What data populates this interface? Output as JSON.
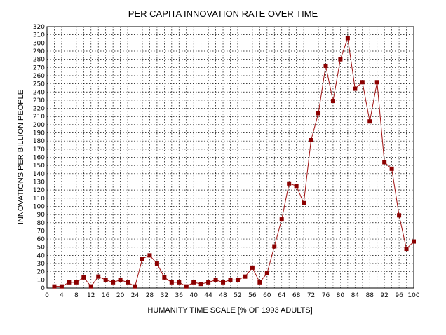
{
  "chart_data": {
    "type": "line",
    "title": "PER CAPITA INNOVATION RATE OVER TIME",
    "xlabel": "HUMANITY TIME SCALE [% OF 1993 ADULTS]",
    "ylabel": "INNOVATIONS PER BILLION PEOPLE",
    "xlim": [
      0,
      100
    ],
    "ylim": [
      0,
      320
    ],
    "xticks": [
      0,
      4,
      8,
      12,
      16,
      20,
      24,
      28,
      32,
      36,
      40,
      44,
      48,
      52,
      56,
      60,
      64,
      68,
      72,
      76,
      80,
      84,
      88,
      92,
      96,
      100
    ],
    "xgrid_step": 2,
    "ytick_step": 10,
    "grid": true,
    "marker": "square",
    "colors": {
      "line": "#a01010",
      "marker": "#8b0000",
      "grid": "#000000"
    },
    "series": [
      {
        "x": [
          2,
          4,
          6,
          8,
          10,
          12,
          14,
          16,
          18,
          20,
          22,
          24,
          26,
          28,
          30,
          32,
          34,
          36,
          38,
          40,
          42,
          44,
          46,
          48,
          50,
          52,
          54,
          56,
          58,
          60,
          62,
          64,
          66,
          68,
          70,
          72,
          74,
          76,
          78,
          80,
          82,
          84,
          86,
          88,
          90,
          92,
          94,
          96,
          98,
          100
        ],
        "y": [
          2,
          2,
          7,
          7,
          13,
          2,
          14,
          10,
          7,
          10,
          7,
          2,
          36,
          40,
          30,
          13,
          7,
          7,
          2,
          7,
          5,
          7,
          10,
          7,
          10,
          10,
          14,
          25,
          7,
          18,
          51,
          84,
          128,
          125,
          104,
          181,
          214,
          272,
          229,
          280,
          306,
          244,
          252,
          204,
          252,
          154,
          146,
          89,
          48,
          57
        ]
      }
    ]
  }
}
